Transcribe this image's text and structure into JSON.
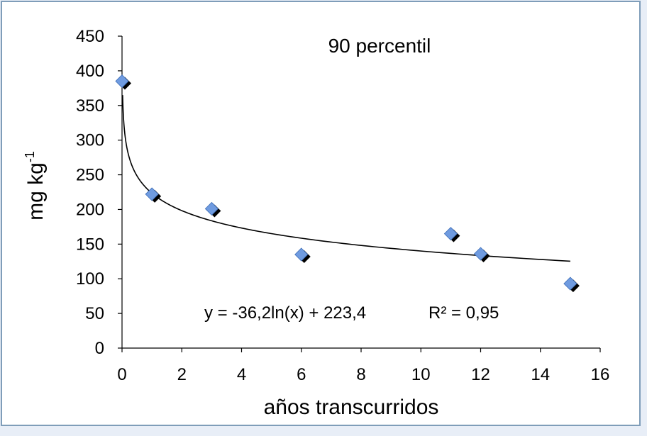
{
  "chart_data": {
    "type": "scatter",
    "title": "90 percentil",
    "xlabel": "años transcurridos",
    "ylabel_main": "mg kg",
    "ylabel_sup": "-1",
    "xlim": [
      0,
      16
    ],
    "ylim": [
      0,
      450
    ],
    "xticks": [
      0,
      2,
      4,
      6,
      8,
      10,
      12,
      14,
      16
    ],
    "yticks": [
      0,
      50,
      100,
      150,
      200,
      250,
      300,
      350,
      400,
      450
    ],
    "grid": false,
    "legend": "none",
    "marker": "diamond",
    "colors": {
      "marker": "#6f9be0",
      "marker_shadow": "#000000",
      "trendline": "#000000",
      "background": "#ffffff",
      "border": "#7f9db9"
    },
    "points": [
      {
        "x": 0,
        "y": 385
      },
      {
        "x": 1,
        "y": 222
      },
      {
        "x": 3,
        "y": 201
      },
      {
        "x": 6,
        "y": 135
      },
      {
        "x": 11,
        "y": 165
      },
      {
        "x": 12,
        "y": 136
      },
      {
        "x": 15,
        "y": 93
      }
    ],
    "trendline": {
      "type": "logarithmic",
      "a": -36.2,
      "b": 223.4,
      "x_from": 0.02,
      "x_to": 15
    },
    "equation": "y = -36,2ln(x) + 223,4",
    "r_squared": "R² = 0,95"
  }
}
